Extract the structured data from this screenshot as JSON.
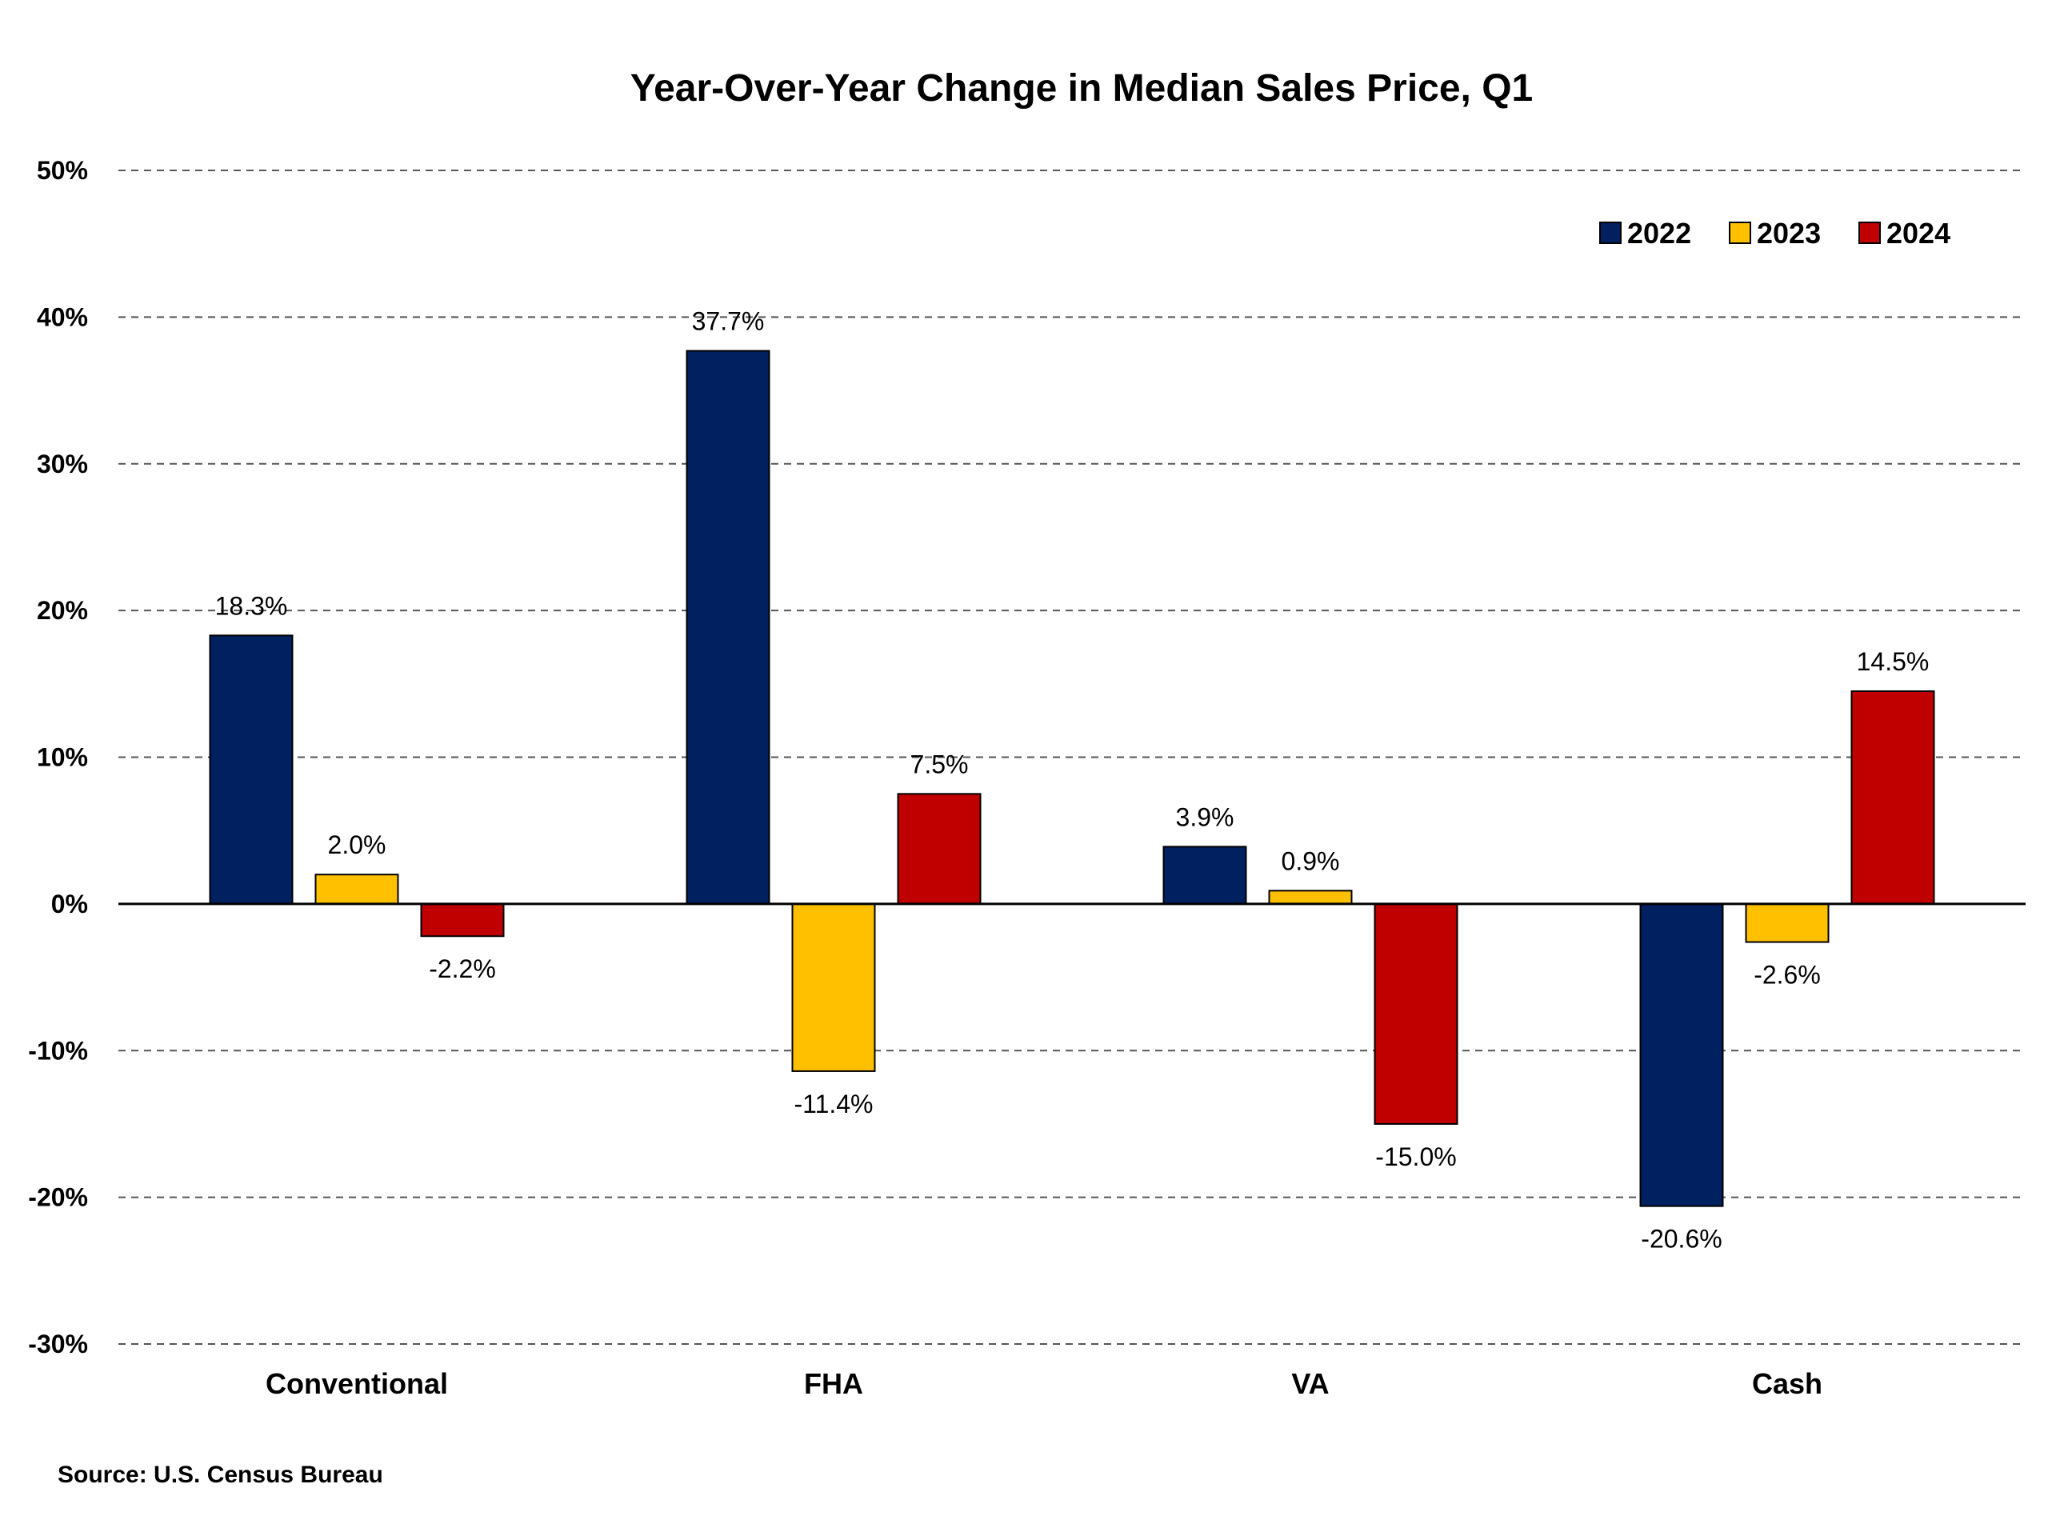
{
  "chart_data": {
    "type": "bar",
    "title": "Year-Over-Year Change in Median Sales Price, Q1",
    "source": "Source: U.S. Census Bureau",
    "categories": [
      "Conventional",
      "FHA",
      "VA",
      "Cash"
    ],
    "series": [
      {
        "name": "2022",
        "color": "#002060",
        "values": [
          18.3,
          37.7,
          3.9,
          -20.6
        ],
        "labels": [
          "18.3%",
          "37.7%",
          "3.9%",
          "-20.6%"
        ]
      },
      {
        "name": "2023",
        "color": "#FFC000",
        "values": [
          2.0,
          -11.4,
          0.9,
          -2.6
        ],
        "labels": [
          "2.0%",
          "-11.4%",
          "0.9%",
          "-2.6%"
        ]
      },
      {
        "name": "2024",
        "color": "#C00000",
        "values": [
          -2.2,
          7.5,
          -15.0,
          14.5
        ],
        "labels": [
          "-2.2%",
          "7.5%",
          "-15.0%",
          "14.5%"
        ]
      }
    ],
    "ylim": [
      -30,
      50
    ],
    "yticks": [
      50,
      40,
      30,
      20,
      10,
      0,
      -10,
      -20,
      -30
    ],
    "ytick_labels": [
      "50%",
      "40%",
      "30%",
      "20%",
      "10%",
      "0%",
      "-10%",
      "-20%",
      "-30%"
    ],
    "grid": "horizontal-dashed",
    "legend_position": "top-right"
  }
}
